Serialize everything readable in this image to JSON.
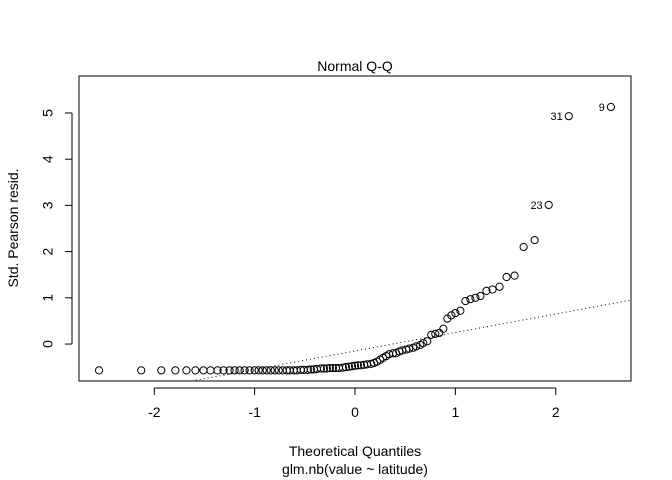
{
  "chart_data": {
    "type": "scatter",
    "title": "Normal Q-Q",
    "xlabel": "Theoretical Quantiles",
    "xlabel_sub": "glm.nb(value ~ latitude)",
    "ylabel": "Std. Pearson resid.",
    "xlim": [
      -2.75,
      2.75
    ],
    "ylim": [
      -0.8,
      5.8
    ],
    "xticks": [
      -2,
      -1,
      0,
      1,
      2
    ],
    "xtick_labels": [
      "-2",
      "-1",
      "0",
      "1",
      "2"
    ],
    "yticks": [
      0,
      1,
      2,
      3,
      4,
      5
    ],
    "ytick_labels": [
      "0",
      "1",
      "2",
      "3",
      "4",
      "5"
    ],
    "reference_line": {
      "intercept": -0.15,
      "slope": 0.4,
      "style": "dotted"
    },
    "labeled_points": [
      {
        "label": "9",
        "x": 2.55,
        "y": 5.13
      },
      {
        "label": "31",
        "x": 2.13,
        "y": 4.93
      },
      {
        "label": "23",
        "x": 1.93,
        "y": 3.01
      }
    ],
    "points": [
      [
        -2.55,
        -0.57
      ],
      [
        -2.13,
        -0.57
      ],
      [
        -1.93,
        -0.57
      ],
      [
        -1.79,
        -0.57
      ],
      [
        -1.68,
        -0.57
      ],
      [
        -1.59,
        -0.57
      ],
      [
        -1.51,
        -0.57
      ],
      [
        -1.44,
        -0.57
      ],
      [
        -1.37,
        -0.57
      ],
      [
        -1.31,
        -0.57
      ],
      [
        -1.25,
        -0.57
      ],
      [
        -1.2,
        -0.57
      ],
      [
        -1.15,
        -0.57
      ],
      [
        -1.1,
        -0.57
      ],
      [
        -1.05,
        -0.57
      ],
      [
        -1.0,
        -0.57
      ],
      [
        -0.96,
        -0.57
      ],
      [
        -0.92,
        -0.57
      ],
      [
        -0.88,
        -0.57
      ],
      [
        -0.84,
        -0.57
      ],
      [
        -0.8,
        -0.57
      ],
      [
        -0.76,
        -0.57
      ],
      [
        -0.72,
        -0.57
      ],
      [
        -0.68,
        -0.57
      ],
      [
        -0.65,
        -0.57
      ],
      [
        -0.61,
        -0.57
      ],
      [
        -0.58,
        -0.57
      ],
      [
        -0.54,
        -0.56
      ],
      [
        -0.51,
        -0.56
      ],
      [
        -0.47,
        -0.56
      ],
      [
        -0.44,
        -0.55
      ],
      [
        -0.41,
        -0.55
      ],
      [
        -0.38,
        -0.54
      ],
      [
        -0.34,
        -0.53
      ],
      [
        -0.31,
        -0.53
      ],
      [
        -0.28,
        -0.53
      ],
      [
        -0.25,
        -0.52
      ],
      [
        -0.22,
        -0.52
      ],
      [
        -0.19,
        -0.52
      ],
      [
        -0.16,
        -0.52
      ],
      [
        -0.12,
        -0.51
      ],
      [
        -0.09,
        -0.5
      ],
      [
        -0.06,
        -0.49
      ],
      [
        -0.03,
        -0.48
      ],
      [
        0.0,
        -0.47
      ],
      [
        0.03,
        -0.46
      ],
      [
        0.06,
        -0.46
      ],
      [
        0.09,
        -0.45
      ],
      [
        0.12,
        -0.44
      ],
      [
        0.16,
        -0.43
      ],
      [
        0.19,
        -0.41
      ],
      [
        0.22,
        -0.38
      ],
      [
        0.25,
        -0.34
      ],
      [
        0.28,
        -0.3
      ],
      [
        0.31,
        -0.26
      ],
      [
        0.34,
        -0.22
      ],
      [
        0.38,
        -0.2
      ],
      [
        0.41,
        -0.2
      ],
      [
        0.44,
        -0.16
      ],
      [
        0.47,
        -0.14
      ],
      [
        0.51,
        -0.12
      ],
      [
        0.54,
        -0.1
      ],
      [
        0.58,
        -0.08
      ],
      [
        0.61,
        -0.05
      ],
      [
        0.65,
        -0.02
      ],
      [
        0.68,
        0.02
      ],
      [
        0.72,
        0.06
      ],
      [
        0.76,
        0.2
      ],
      [
        0.8,
        0.22
      ],
      [
        0.84,
        0.24
      ],
      [
        0.88,
        0.33
      ],
      [
        0.92,
        0.55
      ],
      [
        0.96,
        0.62
      ],
      [
        1.0,
        0.67
      ],
      [
        1.05,
        0.72
      ],
      [
        1.1,
        0.93
      ],
      [
        1.15,
        0.97
      ],
      [
        1.2,
        1.0
      ],
      [
        1.25,
        1.04
      ],
      [
        1.31,
        1.15
      ],
      [
        1.37,
        1.18
      ],
      [
        1.44,
        1.24
      ],
      [
        1.51,
        1.45
      ],
      [
        1.59,
        1.48
      ],
      [
        1.68,
        2.1
      ],
      [
        1.79,
        2.25
      ],
      [
        1.93,
        3.01
      ],
      [
        2.13,
        4.93
      ],
      [
        2.55,
        5.13
      ]
    ]
  }
}
